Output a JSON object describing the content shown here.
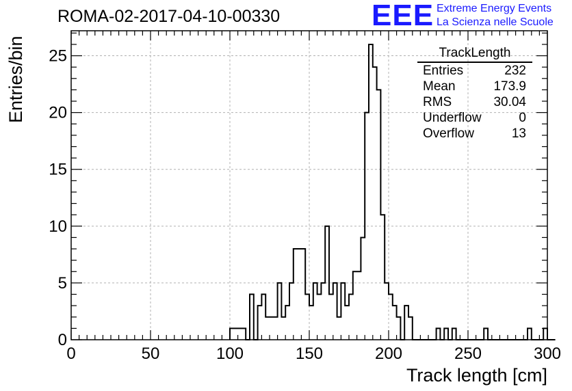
{
  "header": {
    "run_title": "ROMA-02-2017-04-10-00330",
    "logo_text": "EEE",
    "logo_line1": "Extreme Energy Events",
    "logo_line2": "La Scienza nelle Scuole",
    "logo_color": "#1a1aff"
  },
  "stats_box": {
    "title": "TrackLength",
    "rows": [
      {
        "label": "Entries",
        "value": "232"
      },
      {
        "label": "Mean",
        "value": "173.9"
      },
      {
        "label": "RMS",
        "value": "30.04"
      },
      {
        "label": "Underflow",
        "value": "0"
      },
      {
        "label": "Overflow",
        "value": "13"
      }
    ]
  },
  "chart_data": {
    "type": "bar",
    "style": "step-histogram",
    "xlabel": "Track length [cm]",
    "ylabel": "Entries/bin",
    "xlim": [
      0,
      300
    ],
    "ylim": [
      0,
      27.2
    ],
    "grid": true,
    "bin_width": 5,
    "x_ticks": [
      0,
      50,
      100,
      150,
      200,
      250,
      300
    ],
    "y_ticks": [
      0,
      5,
      10,
      15,
      20,
      25
    ],
    "bins": [
      {
        "x": 100,
        "y": 1
      },
      {
        "x": 105,
        "y": 1
      },
      {
        "x": 110,
        "y": 0
      },
      {
        "x": 112.5,
        "y": 4
      },
      {
        "x": 115,
        "y": 0
      },
      {
        "x": 117.5,
        "y": 3
      },
      {
        "x": 120,
        "y": 4
      },
      {
        "x": 122.5,
        "y": 2
      },
      {
        "x": 125,
        "y": 2
      },
      {
        "x": 127.5,
        "y": 2
      },
      {
        "x": 130,
        "y": 5
      },
      {
        "x": 132.5,
        "y": 2
      },
      {
        "x": 135,
        "y": 3
      },
      {
        "x": 137.5,
        "y": 5
      },
      {
        "x": 140,
        "y": 8
      },
      {
        "x": 142.5,
        "y": 8
      },
      {
        "x": 145,
        "y": 8
      },
      {
        "x": 147.5,
        "y": 4
      },
      {
        "x": 150,
        "y": 3
      },
      {
        "x": 152.5,
        "y": 5
      },
      {
        "x": 155,
        "y": 4
      },
      {
        "x": 157.5,
        "y": 5
      },
      {
        "x": 160,
        "y": 10
      },
      {
        "x": 162.5,
        "y": 4
      },
      {
        "x": 165,
        "y": 5
      },
      {
        "x": 167.5,
        "y": 2
      },
      {
        "x": 170,
        "y": 5
      },
      {
        "x": 172.5,
        "y": 3
      },
      {
        "x": 175,
        "y": 4
      },
      {
        "x": 177.5,
        "y": 6
      },
      {
        "x": 180,
        "y": 6
      },
      {
        "x": 182.5,
        "y": 9
      },
      {
        "x": 185,
        "y": 20
      },
      {
        "x": 187.5,
        "y": 26
      },
      {
        "x": 190,
        "y": 24
      },
      {
        "x": 192.5,
        "y": 22
      },
      {
        "x": 195,
        "y": 11
      },
      {
        "x": 197.5,
        "y": 5
      },
      {
        "x": 200,
        "y": 4
      },
      {
        "x": 202.5,
        "y": 3
      },
      {
        "x": 205,
        "y": 2
      },
      {
        "x": 207.5,
        "y": 0
      },
      {
        "x": 210,
        "y": 3
      },
      {
        "x": 212.5,
        "y": 2
      },
      {
        "x": 215,
        "y": 0
      },
      {
        "x": 230,
        "y": 1
      },
      {
        "x": 232.5,
        "y": 0
      },
      {
        "x": 235,
        "y": 1
      },
      {
        "x": 237.5,
        "y": 0
      },
      {
        "x": 240,
        "y": 1
      },
      {
        "x": 242.5,
        "y": 0
      },
      {
        "x": 260,
        "y": 1
      },
      {
        "x": 262.5,
        "y": 0
      },
      {
        "x": 287.5,
        "y": 1
      },
      {
        "x": 290,
        "y": 0
      },
      {
        "x": 297.5,
        "y": 1
      },
      {
        "x": 300,
        "y": 0
      }
    ]
  }
}
